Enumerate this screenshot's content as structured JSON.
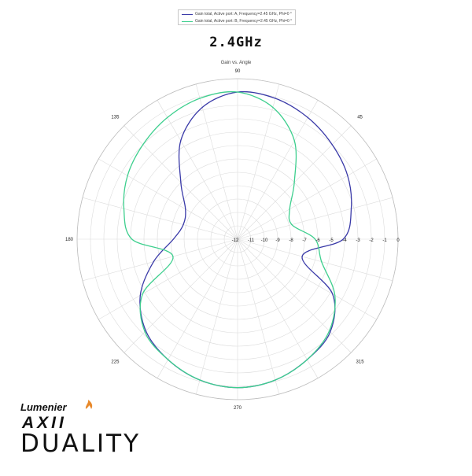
{
  "legend": [
    {
      "label": "Gain total, Active port: A, Frequency=2.45 GHz, Phi=0 °",
      "color": "#3a3aa8"
    },
    {
      "label": "Gain total, Active port: B, Frequency=2.45 GHz, Phi=0 °",
      "color": "#3ecf8e"
    }
  ],
  "frequency_title": "2.4GHz",
  "brand": {
    "lumenier": "Lumenier",
    "model": "AXII",
    "product": "DUALITY",
    "accent_color": "#e8892b"
  },
  "chart_data": {
    "type": "polar-line",
    "title": "Gain vs. Angle",
    "radial_axis": {
      "min": -12,
      "max": 0,
      "step": 1,
      "tick_labels": [
        "-12",
        "-11",
        "-10",
        "-9",
        "-8",
        "-7",
        "-6",
        "-5",
        "-4",
        "-3",
        "-2",
        "-1",
        "0"
      ]
    },
    "angle_axis": {
      "unit": "deg",
      "step": 15,
      "labels": [
        {
          "angle": 90,
          "text": "90"
        },
        {
          "angle": 45,
          "text": "45"
        },
        {
          "angle": 135,
          "text": "135"
        },
        {
          "angle": 180,
          "text": "180"
        },
        {
          "angle": 225,
          "text": "225"
        },
        {
          "angle": 270,
          "text": "270"
        },
        {
          "angle": 315,
          "text": "315"
        }
      ]
    },
    "grid": true,
    "series": [
      {
        "name": "Gain total, Active port: A, Frequency=2.45 GHz, Phi=0 °",
        "color": "#3a3aa8",
        "angles": [
          0,
          15,
          30,
          45,
          60,
          75,
          90,
          105,
          120,
          135,
          150,
          165,
          180,
          195,
          210,
          225,
          240,
          255,
          270,
          285,
          300,
          315,
          330,
          345
        ],
        "gain_db": [
          -4.1,
          -3.2,
          -2.5,
          -2.0,
          -1.5,
          -1.1,
          -1.0,
          -1.8,
          -3.5,
          -6.0,
          -7.5,
          -7.8,
          -7.2,
          -5.5,
          -3.6,
          -2.3,
          -1.6,
          -1.1,
          -0.9,
          -1.1,
          -1.6,
          -2.2,
          -3.8,
          -7.0
        ]
      },
      {
        "name": "Gain total, Active port: B, Frequency=2.45 GHz, Phi=0 °",
        "color": "#3ecf8e",
        "angles": [
          0,
          15,
          30,
          45,
          60,
          75,
          90,
          105,
          120,
          135,
          150,
          165,
          180,
          195,
          210,
          225,
          240,
          255,
          270,
          285,
          300,
          315,
          330,
          345
        ],
        "gain_db": [
          -6.2,
          -7.8,
          -7.5,
          -6.0,
          -3.5,
          -1.8,
          -1.0,
          -1.1,
          -1.5,
          -2.0,
          -2.5,
          -3.2,
          -4.1,
          -7.0,
          -3.8,
          -2.2,
          -1.6,
          -1.1,
          -0.9,
          -1.1,
          -1.6,
          -2.3,
          -3.6,
          -5.5
        ]
      }
    ]
  }
}
